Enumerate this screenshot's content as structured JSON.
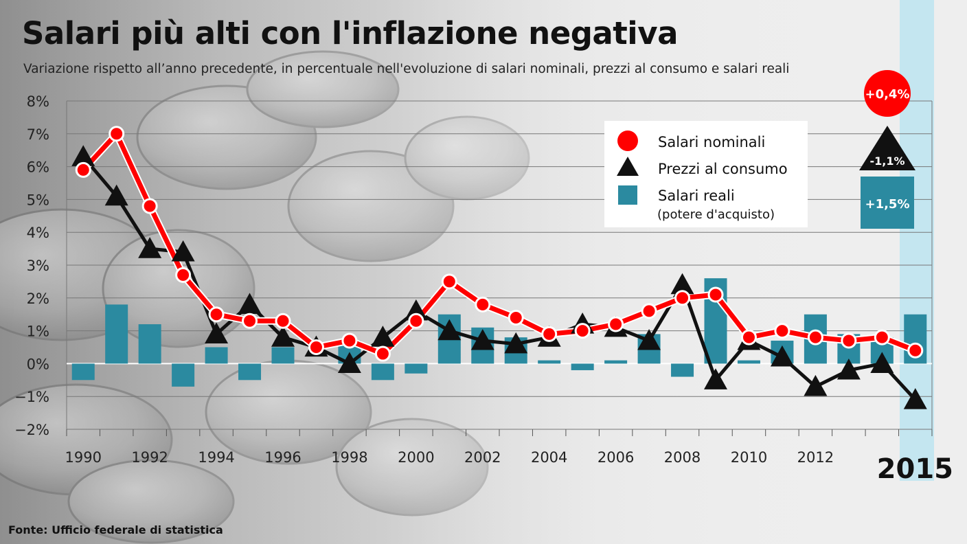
{
  "chart_data": {
    "type": "line",
    "title": "Salari più alti con l'inflazione negativa",
    "subtitle": "Variazione rispetto all’anno precedente, in percentuale nell'evoluzione di salari nominali, prezzi al consumo e salari reali",
    "x": [
      1990,
      1991,
      1992,
      1993,
      1994,
      1995,
      1996,
      1997,
      1998,
      1999,
      2000,
      2001,
      2002,
      2003,
      2004,
      2005,
      2006,
      2007,
      2008,
      2009,
      2010,
      2011,
      2012,
      2013,
      2014,
      2015
    ],
    "x_tick_labels": [
      "1990",
      "1992",
      "1994",
      "1996",
      "1998",
      "2000",
      "2002",
      "2004",
      "2006",
      "2008",
      "2010",
      "2012"
    ],
    "y_tick_labels": [
      "8%",
      "7%",
      "6%",
      "5%",
      "4%",
      "3%",
      "2%",
      "1%",
      "0%",
      "−1%",
      "−2%"
    ],
    "ylim": [
      -2,
      8
    ],
    "grid": true,
    "series": [
      {
        "name": "Salari nominali",
        "type": "line",
        "color": "#ff0000",
        "values": [
          5.9,
          7.0,
          4.8,
          2.7,
          1.5,
          1.3,
          1.3,
          0.5,
          0.7,
          0.3,
          1.3,
          2.5,
          1.8,
          1.4,
          0.9,
          1.0,
          1.2,
          1.6,
          2.0,
          2.1,
          0.8,
          1.0,
          0.8,
          0.7,
          0.8,
          0.4
        ]
      },
      {
        "name": "Prezzi al consumo",
        "type": "line",
        "color": "#111111",
        "values": [
          6.3,
          5.1,
          3.5,
          3.4,
          0.9,
          1.8,
          0.8,
          0.5,
          0.0,
          0.8,
          1.6,
          1.0,
          0.7,
          0.6,
          0.8,
          1.2,
          1.1,
          0.7,
          2.4,
          -0.5,
          0.7,
          0.2,
          -0.7,
          -0.2,
          0.0,
          -1.1
        ]
      },
      {
        "name": "Salari reali",
        "type": "bar",
        "sublabel": "(potere d'acquisto)",
        "color": "#2b8aa0",
        "values": [
          -0.5,
          1.8,
          1.2,
          -0.7,
          0.5,
          -0.5,
          0.5,
          0.0,
          0.7,
          -0.5,
          -0.3,
          1.5,
          1.1,
          0.8,
          0.1,
          -0.2,
          0.1,
          0.9,
          -0.4,
          2.6,
          0.1,
          0.7,
          1.5,
          0.9,
          0.8,
          1.5
        ]
      }
    ],
    "highlight": {
      "year_label": "2015",
      "salari_nominali": "+0,4%",
      "prezzi_al_consumo": "-1,1%",
      "salari_reali": "+1,5%"
    },
    "legend": {
      "position": "top-right",
      "entries": [
        "Salari nominali",
        "Prezzi al consumo",
        "Salari reali"
      ],
      "note": "(potere d'acquisto)"
    },
    "colors": {
      "nominal": "#ff0000",
      "prices": "#111111",
      "real": "#2b8aa0",
      "highlight_band": "#bfe4f0"
    }
  },
  "footer": {
    "source": "Fonte: Ufficio federale di statistica"
  }
}
